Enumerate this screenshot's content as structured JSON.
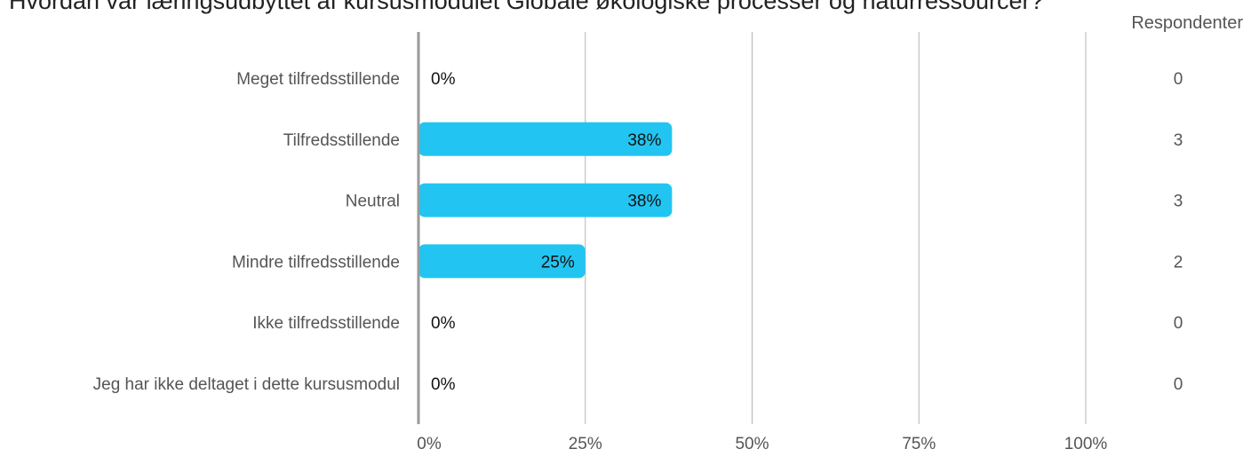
{
  "chart_data": {
    "type": "bar",
    "orientation": "horizontal",
    "title": "Hvordan var læringsudbyttet af kursusmodulet Globale økologiske processer og naturressourcer?",
    "categories": [
      "Meget tilfredsstillende",
      "Tilfredsstillende",
      "Neutral",
      "Mindre tilfredsstillende",
      "Ikke tilfredsstillende",
      "Jeg har ikke deltaget i dette kursusmodul"
    ],
    "values": [
      0,
      38,
      38,
      25,
      0,
      0
    ],
    "value_labels": [
      "0%",
      "38%",
      "38%",
      "25%",
      "0%",
      "0%"
    ],
    "respondents_header": "Respondenter",
    "respondents": [
      "0",
      "3",
      "3",
      "2",
      "0",
      "0"
    ],
    "xlim": [
      0,
      100
    ],
    "xticks": [
      0,
      25,
      50,
      75,
      100
    ],
    "xtick_labels": [
      "0%",
      "25%",
      "50%",
      "75%",
      "100%"
    ],
    "grid": true,
    "bar_color": "#22c5f2"
  }
}
